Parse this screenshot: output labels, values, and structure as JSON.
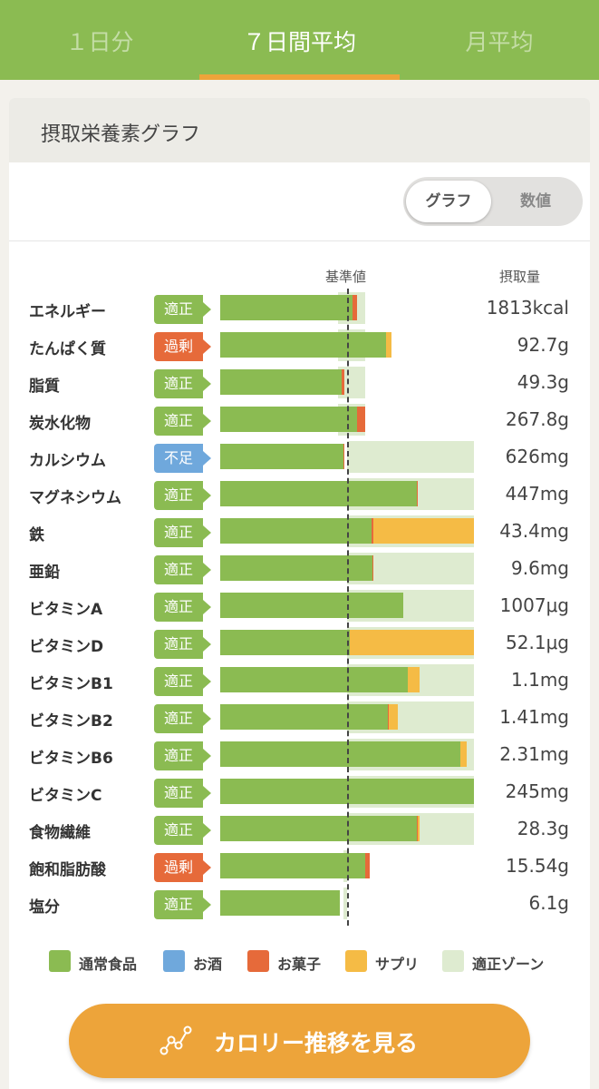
{
  "tabs": [
    {
      "label": "１日分",
      "active": false
    },
    {
      "label": "７日間平均",
      "active": true
    },
    {
      "label": "月平均",
      "active": false
    }
  ],
  "card": {
    "title": "摂取栄養素グラフ"
  },
  "view_toggle": {
    "options": [
      "グラフ",
      "数値"
    ],
    "selected": "グラフ"
  },
  "headers": {
    "reference": "基準値",
    "intake": "摂取量"
  },
  "colors": {
    "normal": "#8bbb52",
    "alcohol": "#6fa8dc",
    "snacks": "#e66a3a",
    "supplement": "#f5bb45",
    "zone": "#deebd0",
    "status_ok": "#8bbb52",
    "status_over": "#e66a3a",
    "status_under": "#6fa8dc"
  },
  "status_labels": {
    "ok": "適正",
    "over": "過剰",
    "under": "不足"
  },
  "chart_data": {
    "type": "bar",
    "orientation": "horizontal",
    "stacked": true,
    "reference_label": "基準値",
    "series": [
      {
        "name": "通常食品"
      },
      {
        "name": "お酒"
      },
      {
        "name": "お菓子"
      },
      {
        "name": "サプリ"
      },
      {
        "name": "適正ゾーン"
      }
    ],
    "nutrients": [
      {
        "name": "エネルギー",
        "status": "適正",
        "value": "1813kcal",
        "normal": 1.04,
        "snacks": 0.04,
        "supplement": 0.0,
        "zone": [
          0.93,
          1.14
        ]
      },
      {
        "name": "たんぱく質",
        "status": "過剰",
        "value": "92.7g",
        "normal": 1.31,
        "snacks": 0.0,
        "supplement": 0.04,
        "zone": [
          0.93,
          1.14
        ]
      },
      {
        "name": "脂質",
        "status": "適正",
        "value": "49.3g",
        "normal": 0.96,
        "snacks": 0.02,
        "supplement": 0.0,
        "zone": [
          0.93,
          1.14
        ]
      },
      {
        "name": "炭水化物",
        "status": "適正",
        "value": "267.8g",
        "normal": 1.08,
        "snacks": 0.06,
        "supplement": 0.0,
        "zone": [
          0.93,
          1.14
        ]
      },
      {
        "name": "カルシウム",
        "status": "不足",
        "value": "626mg",
        "normal": 0.97,
        "snacks": 0.01,
        "supplement": 0.0,
        "zone": [
          1.0,
          2.0
        ]
      },
      {
        "name": "マグネシウム",
        "status": "適正",
        "value": "447mg",
        "normal": 1.55,
        "snacks": 0.01,
        "supplement": 0.0,
        "zone": [
          1.0,
          2.0
        ]
      },
      {
        "name": "鉄",
        "status": "適正",
        "value": "43.4mg",
        "normal": 1.19,
        "snacks": 0.02,
        "supplement": 0.79,
        "zone": [
          1.0,
          2.0
        ]
      },
      {
        "name": "亜鉛",
        "status": "適正",
        "value": "9.6mg",
        "normal": 1.2,
        "snacks": 0.01,
        "supplement": 0.0,
        "zone": [
          1.0,
          2.0
        ]
      },
      {
        "name": "ビタミンA",
        "status": "適正",
        "value": "1007μg",
        "normal": 1.44,
        "snacks": 0.0,
        "supplement": 0.0,
        "zone": [
          1.0,
          2.0
        ]
      },
      {
        "name": "ビタミンD",
        "status": "適正",
        "value": "52.1μg",
        "normal": 1.02,
        "snacks": 0.0,
        "supplement": 0.98,
        "zone": [
          1.0,
          2.0
        ]
      },
      {
        "name": "ビタミンB1",
        "status": "適正",
        "value": "1.1mg",
        "normal": 1.48,
        "snacks": 0.0,
        "supplement": 0.09,
        "zone": [
          1.0,
          2.0
        ]
      },
      {
        "name": "ビタミンB2",
        "status": "適正",
        "value": "1.41mg",
        "normal": 1.32,
        "snacks": 0.01,
        "supplement": 0.07,
        "zone": [
          1.0,
          2.0
        ]
      },
      {
        "name": "ビタミンB6",
        "status": "適正",
        "value": "2.31mg",
        "normal": 1.89,
        "snacks": 0.0,
        "supplement": 0.05,
        "zone": [
          1.0,
          2.0
        ]
      },
      {
        "name": "ビタミンC",
        "status": "適正",
        "value": "245mg",
        "normal": 2.0,
        "snacks": 0.0,
        "supplement": 0.0,
        "zone": [
          1.0,
          2.0
        ]
      },
      {
        "name": "食物繊維",
        "status": "適正",
        "value": "28.3g",
        "normal": 1.55,
        "snacks": 0.01,
        "supplement": 0.01,
        "zone": [
          1.0,
          2.0
        ]
      },
      {
        "name": "飽和脂肪酸",
        "status": "過剰",
        "value": "15.54g",
        "normal": 1.14,
        "snacks": 0.04,
        "supplement": 0.0,
        "zone": [
          0.97,
          1.0
        ]
      },
      {
        "name": "塩分",
        "status": "適正",
        "value": "6.1g",
        "normal": 0.94,
        "snacks": 0.0,
        "supplement": 0.0,
        "zone": [
          0.97,
          1.0
        ]
      }
    ]
  },
  "cta": {
    "label": "カロリー推移を見る",
    "icon": "line-chart-icon"
  }
}
